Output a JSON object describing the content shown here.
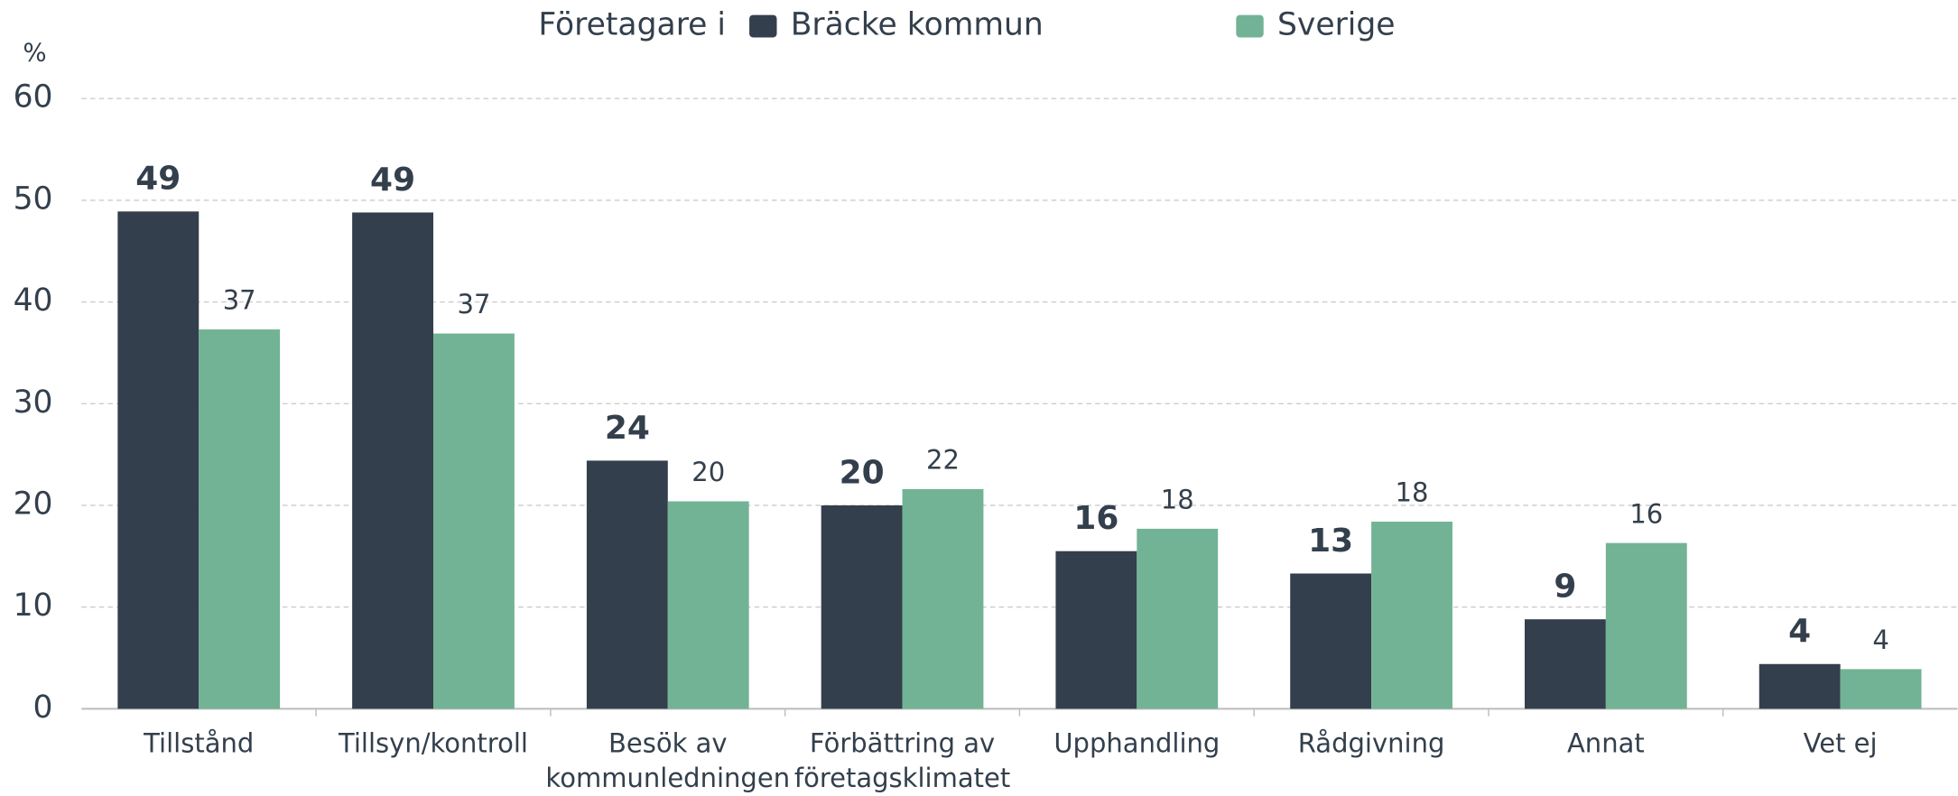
{
  "chart_data": {
    "type": "bar",
    "legend_title": "Företagare i",
    "y_label": "%",
    "categories": [
      "Tillstånd",
      "Tillsyn/kontroll",
      "Besök av\nkommunledningen",
      "Förbättring av\nföretagsklimatet",
      "Upphandling",
      "Rådgivning",
      "Annat",
      "Vet ej"
    ],
    "series": [
      {
        "name": "Bräcke kommun",
        "color": "#333f4c",
        "values": [
          48.9,
          48.8,
          24.4,
          20,
          15.5,
          13.3,
          8.8,
          4.4
        ],
        "value_labels": [
          "49",
          "49",
          "24",
          "20",
          "16",
          "13",
          "9",
          "4"
        ]
      },
      {
        "name": "Sverige",
        "color": "#72b396",
        "values": [
          37.3,
          36.9,
          20.4,
          21.6,
          17.7,
          18.4,
          16.3,
          3.9
        ],
        "value_labels": [
          "37",
          "37",
          "20",
          "22",
          "18",
          "18",
          "16",
          "4"
        ]
      }
    ],
    "ylim": [
      0,
      60
    ],
    "yticks": [
      0,
      10,
      20,
      30,
      40,
      50,
      60
    ],
    "grid": true
  }
}
